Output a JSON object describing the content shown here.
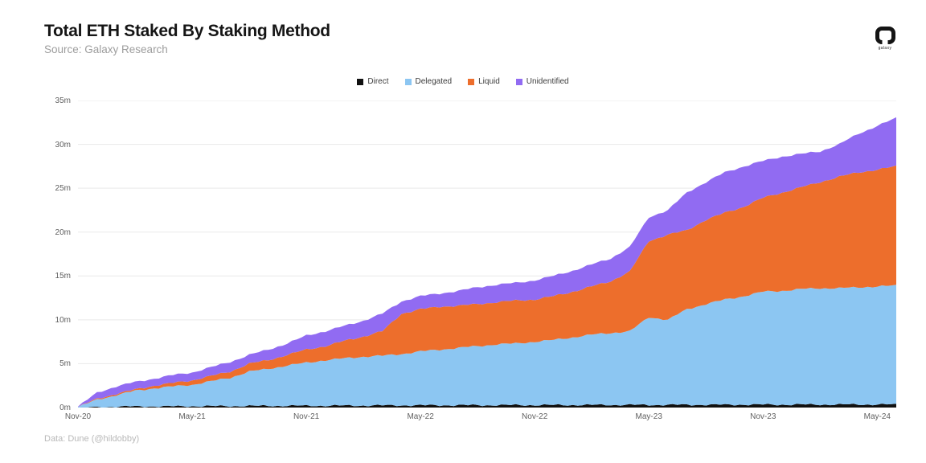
{
  "header": {
    "title": "Total ETH Staked By Staking Method",
    "subtitle": "Source: Galaxy Research",
    "logo_label": "galaxy"
  },
  "footer": {
    "credit": "Data: Dune (@hildobby)"
  },
  "chart_data": {
    "type": "area",
    "stacked": true,
    "title": "Total ETH Staked By Staking Method",
    "unit": "millions of ETH staked",
    "grid": "horizontal",
    "legend_position": "top-center",
    "ylim": [
      0,
      35
    ],
    "y_tick_labels": [
      "0m",
      "5m",
      "10m",
      "15m",
      "20m",
      "25m",
      "30m",
      "35m"
    ],
    "x_tick_labels": [
      "Nov-20",
      "May-21",
      "Nov-21",
      "May-22",
      "Nov-22",
      "May-23",
      "Nov-23",
      "May-24"
    ],
    "x": [
      "Nov-20",
      "Dec-20",
      "Jan-21",
      "Feb-21",
      "Mar-21",
      "Apr-21",
      "May-21",
      "Jun-21",
      "Jul-21",
      "Aug-21",
      "Sep-21",
      "Oct-21",
      "Nov-21",
      "Dec-21",
      "Jan-22",
      "Feb-22",
      "Mar-22",
      "Apr-22",
      "May-22",
      "Jun-22",
      "Jul-22",
      "Aug-22",
      "Sep-22",
      "Oct-22",
      "Nov-22",
      "Dec-22",
      "Jan-23",
      "Feb-23",
      "Mar-23",
      "Apr-23",
      "May-23",
      "Jun-23",
      "Jul-23",
      "Aug-23",
      "Sep-23",
      "Oct-23",
      "Nov-23",
      "Dec-23",
      "Jan-24",
      "Feb-24",
      "Mar-24",
      "Apr-24",
      "May-24",
      "Jun-24"
    ],
    "series": [
      {
        "name": "Direct",
        "color": "#111111",
        "values": [
          0,
          0.03,
          0.1,
          0.12,
          0.13,
          0.14,
          0.15,
          0.16,
          0.17,
          0.18,
          0.19,
          0.2,
          0.2,
          0.21,
          0.22,
          0.23,
          0.24,
          0.25,
          0.25,
          0.26,
          0.26,
          0.27,
          0.27,
          0.28,
          0.28,
          0.28,
          0.29,
          0.29,
          0.3,
          0.3,
          0.3,
          0.31,
          0.31,
          0.32,
          0.32,
          0.33,
          0.33,
          0.33,
          0.34,
          0.34,
          0.34,
          0.35,
          0.35,
          0.35
        ]
      },
      {
        "name": "Delegated",
        "color": "#8cc6f2",
        "values": [
          0.05,
          0.87,
          1.3,
          1.78,
          2.07,
          2.26,
          2.45,
          2.84,
          3.23,
          3.92,
          4.21,
          4.6,
          4.9,
          5.19,
          5.38,
          5.57,
          5.66,
          5.85,
          6.15,
          6.34,
          6.54,
          6.73,
          6.93,
          7.02,
          7.22,
          7.42,
          7.71,
          8.01,
          8.2,
          8.4,
          10,
          9.69,
          10.89,
          11.48,
          11.98,
          12.37,
          12.87,
          12.97,
          13.16,
          13.26,
          13.26,
          13.35,
          13.45,
          13.55
        ]
      },
      {
        "name": "Liquid",
        "color": "#ed6e2c",
        "values": [
          0,
          0.1,
          0.15,
          0.15,
          0.3,
          0.4,
          0.5,
          0.6,
          0.7,
          0.9,
          1,
          1.2,
          1.5,
          1.6,
          2,
          2.3,
          2.8,
          4.6,
          4.8,
          4.9,
          4.8,
          4.8,
          4.8,
          4.9,
          4.8,
          5,
          5.2,
          5.5,
          5.9,
          6.8,
          8.7,
          9.7,
          9,
          9.6,
          9.9,
          10.2,
          10.7,
          11.2,
          11.6,
          12.1,
          12.7,
          13.1,
          13.3,
          13.6
        ]
      },
      {
        "name": "Unidentified",
        "color": "#916bf2",
        "values": [
          0.05,
          0.7,
          0.85,
          0.85,
          0.8,
          0.9,
          0.9,
          1,
          1.1,
          1,
          1.2,
          1.3,
          1.6,
          1.7,
          1.7,
          1.8,
          2,
          1.4,
          1.5,
          1.5,
          1.7,
          1.9,
          2,
          2,
          2.2,
          2.3,
          2.4,
          2.5,
          2.6,
          2.8,
          2.7,
          2.8,
          4.3,
          4.3,
          4.6,
          4.6,
          4.2,
          4.1,
          3.8,
          3.5,
          3.7,
          4.4,
          5,
          5.5
        ]
      }
    ],
    "axis_colors": {
      "baseline": "#c8c8c8",
      "gridline": "#e9e9e9"
    }
  }
}
